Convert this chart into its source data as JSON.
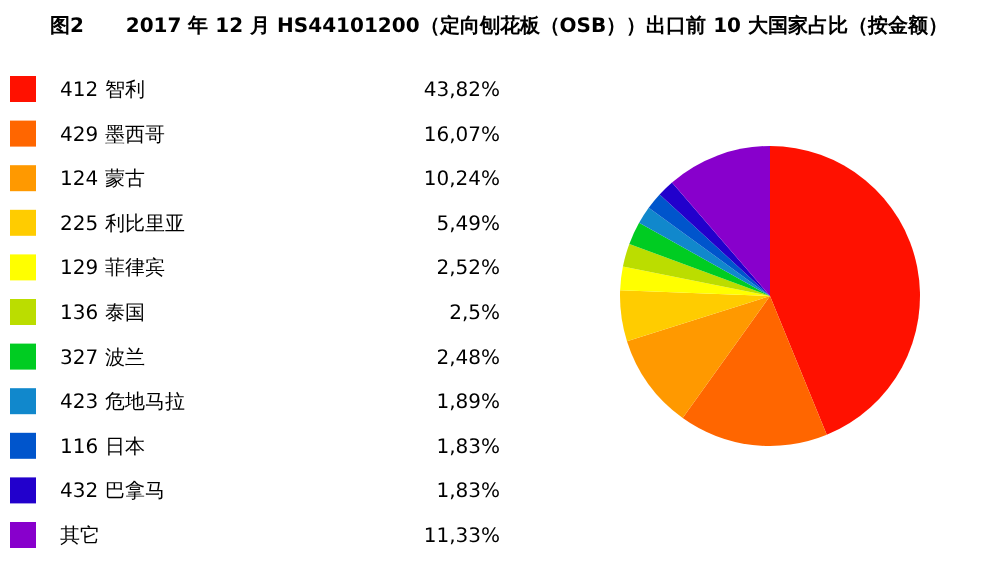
{
  "chart_data": {
    "type": "pie",
    "title": "图2      2017 年 12 月 HS44101200（定向刨花板（OSB））出口前 10 大国家占比（按金额）",
    "categories": [
      "412 智利",
      "429 墨西哥",
      "124 蒙古",
      "225 利比里亚",
      "129 菲律宾",
      "136 泰国",
      "327 波兰",
      "423 危地马拉",
      "116 日本",
      "432 巴拿马",
      "其它"
    ],
    "values": [
      43.82,
      16.07,
      10.24,
      5.49,
      2.52,
      2.5,
      2.48,
      1.89,
      1.83,
      1.83,
      11.33
    ],
    "value_labels": [
      "43,82%",
      "16,07%",
      "10,24%",
      "5,49%",
      "2,52%",
      "2,5%",
      "2,48%",
      "1,89%",
      "1,83%",
      "1,83%",
      "11,33%"
    ],
    "colors": [
      "#ff1100",
      "#ff6600",
      "#ff9900",
      "#ffcc00",
      "#ffff00",
      "#bbdd00",
      "#00cc22",
      "#1188cc",
      "#0055cc",
      "#2200cc",
      "#8800cc"
    ],
    "legend": "left"
  }
}
